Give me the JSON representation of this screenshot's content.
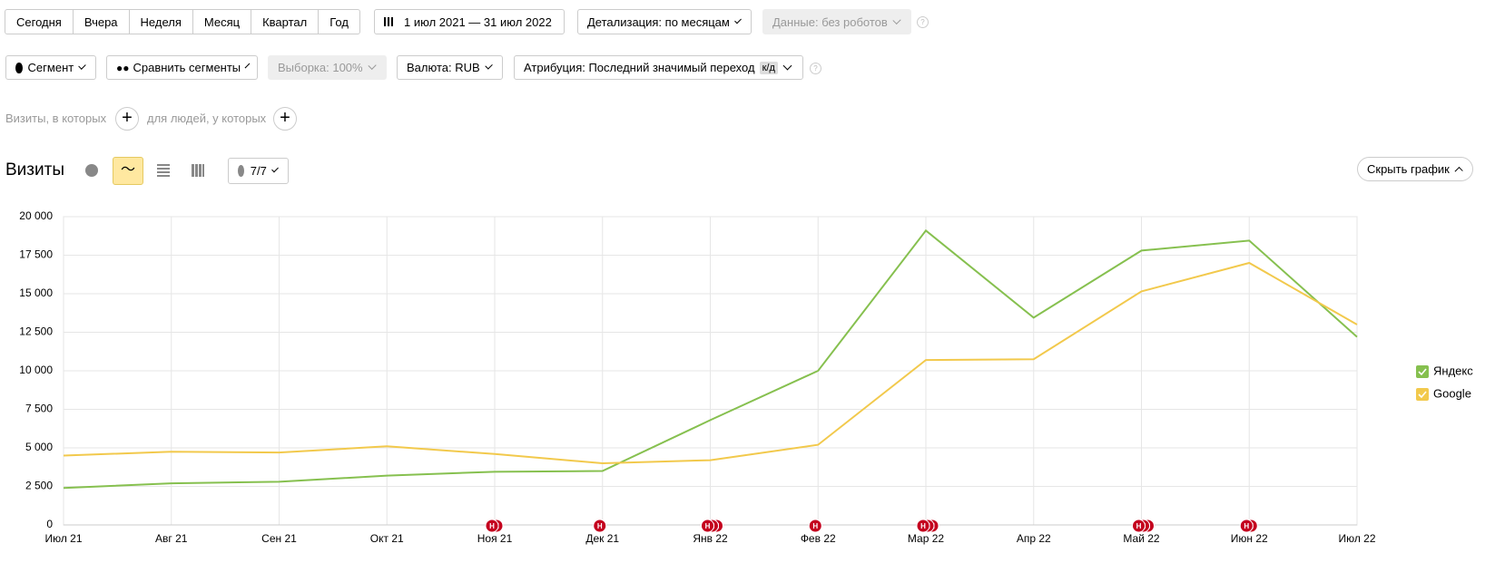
{
  "toolbar": {
    "periods": [
      "Сегодня",
      "Вчера",
      "Неделя",
      "Месяц",
      "Квартал",
      "Год"
    ],
    "date_range": "1 июл 2021 — 31 июл 2022",
    "detail": "Детализация: по месяцам",
    "data_filter": "Данные: без роботов",
    "segment": "Сегмент",
    "compare": "Сравнить сегменты",
    "sample": "Выборка: 100%",
    "currency": "Валюта: RUB",
    "attribution": "Атрибуция: Последний значимый переход",
    "attribution_tag": "к/д",
    "visits_condition": "Визиты, в которых",
    "people_condition": "для людей, у которых"
  },
  "report": {
    "title": "Визиты",
    "notes_count": "7/7",
    "hide_chart": "Скрыть график"
  },
  "chart_data": {
    "type": "line",
    "categories": [
      "Июл 21",
      "Авг 21",
      "Сен 21",
      "Окт 21",
      "Ноя 21",
      "Дек 21",
      "Янв 22",
      "Фев 22",
      "Мар 22",
      "Апр 22",
      "Май 22",
      "Июн 22",
      "Июл 22"
    ],
    "series": [
      {
        "name": "Яндекс",
        "color": "#86c04f",
        "values": [
          2400,
          2700,
          2800,
          3200,
          3450,
          3500,
          6800,
          10000,
          19100,
          13450,
          17800,
          18450,
          12200
        ]
      },
      {
        "name": "Google",
        "color": "#f2c94c",
        "values": [
          4500,
          4750,
          4700,
          5100,
          4600,
          4000,
          4200,
          5200,
          10700,
          10750,
          15150,
          17000,
          13000
        ]
      }
    ],
    "ylim": [
      0,
      20000
    ],
    "yticks": [
      0,
      {
        "value": 2500,
        "label": "2 500"
      },
      {
        "value": 5000,
        "label": "5 000"
      },
      {
        "value": 7500,
        "label": "7 500"
      },
      {
        "value": 10000,
        "label": "10 000"
      },
      {
        "value": 12500,
        "label": "12 500"
      },
      {
        "value": 15000,
        "label": "15 000"
      },
      {
        "value": 17500,
        "label": "17 500"
      },
      {
        "value": 20000,
        "label": "20 000"
      }
    ],
    "grid": true,
    "legend": "right",
    "annotation_label": "Н",
    "annotations": [
      {
        "x": "Ноя 21",
        "count": 2
      },
      {
        "x": "Дек 21",
        "count": 1
      },
      {
        "x": "Янв 22",
        "count": 3
      },
      {
        "x": "Фев 22",
        "count": 1
      },
      {
        "x": "Мар 22",
        "count": 3
      },
      {
        "x": "Май 22",
        "count": 3
      },
      {
        "x": "Июн 22",
        "count": 2
      }
    ]
  }
}
